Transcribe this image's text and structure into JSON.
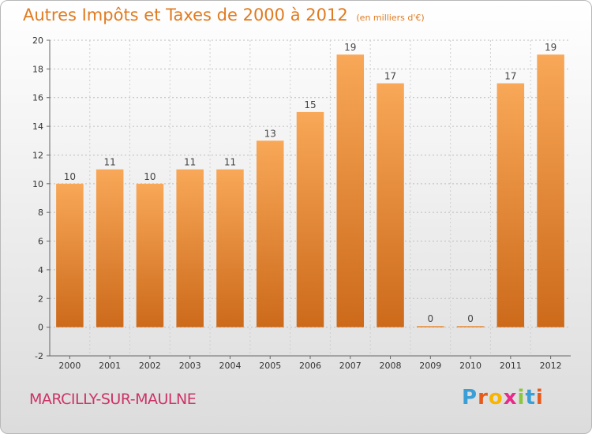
{
  "header": {
    "title": "Autres Impôts et Taxes de 2000 à 2012",
    "subtitle": "(en milliers d'€)"
  },
  "footer": {
    "commune": "MARCILLY-SUR-MAULNE",
    "logo": "Proxiti",
    "logo_colors": [
      "#3a9fd6",
      "#e85a1c",
      "#f7b500",
      "#e82a8a",
      "#8cc63f",
      "#3a9fd6",
      "#e85a1c"
    ]
  },
  "colors": {
    "bar": "#f0913a",
    "bar_light": "#f8a858",
    "bar_dark": "#cc6a1a",
    "title": "#e07b20",
    "commune": "#cc3366"
  },
  "chart_data": {
    "type": "bar",
    "title": "Autres Impôts et Taxes de 2000 à 2012",
    "subtitle": "(en milliers d'€)",
    "categories": [
      "2000",
      "2001",
      "2002",
      "2003",
      "2004",
      "2005",
      "2006",
      "2007",
      "2008",
      "2009",
      "2010",
      "2011",
      "2012"
    ],
    "values": [
      10,
      11,
      10,
      11,
      11,
      13,
      15,
      19,
      17,
      0,
      0,
      17,
      19
    ],
    "data_labels": [
      "10",
      "11",
      "10",
      "11",
      "11",
      "13",
      "15",
      "19",
      "17",
      "0",
      "0",
      "17",
      "19"
    ],
    "ylim": [
      -2,
      20
    ],
    "yticks": [
      -2,
      0,
      2,
      4,
      6,
      8,
      10,
      12,
      14,
      16,
      18,
      20
    ],
    "grid": "horizontal dotted",
    "xlabel": "",
    "ylabel": ""
  }
}
